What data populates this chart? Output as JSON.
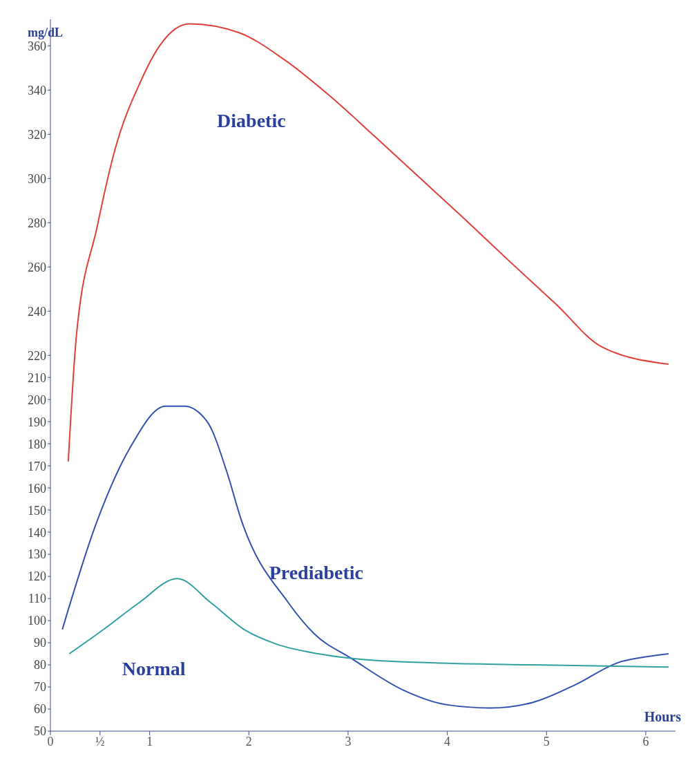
{
  "chart_data": {
    "type": "line",
    "xlabel": "Hours",
    "ylabel": "mg/dL",
    "xlim": [
      0,
      6.3
    ],
    "xticks": [
      0,
      {
        "value": 0.5,
        "label": "½"
      },
      1,
      2,
      3,
      4,
      5,
      6
    ],
    "ylim": [
      50,
      372
    ],
    "yticks": [
      50,
      60,
      70,
      80,
      90,
      100,
      110,
      120,
      130,
      140,
      150,
      160,
      170,
      180,
      190,
      200,
      210,
      220,
      240,
      260,
      280,
      300,
      320,
      340,
      360
    ],
    "grid": false,
    "marker": "none",
    "line_style": "solid",
    "series": [
      {
        "name": "Diabetic",
        "color": "#e0403a",
        "x": [
          0.18,
          0.26,
          0.47,
          0.65,
          0.91,
          1.1,
          1.4,
          1.9,
          2.35,
          2.8,
          3.27,
          3.73,
          4.19,
          4.64,
          5.1,
          5.55,
          6.23
        ],
        "values": [
          172,
          228,
          278,
          313,
          344,
          360,
          370,
          366,
          354,
          338,
          319,
          300,
          281,
          262,
          243,
          224,
          216
        ]
      },
      {
        "name": "Prediabetic",
        "color": "#3050b0",
        "x": [
          0.12,
          0.47,
          0.8,
          1.16,
          1.35,
          1.58,
          1.78,
          1.92,
          2.4,
          2.66,
          3.03,
          3.56,
          3.99,
          4.43,
          4.86,
          5.29,
          5.72,
          6.06,
          6.23
        ],
        "values": [
          96,
          145,
          178,
          197,
          197,
          190,
          167,
          146,
          108,
          94,
          83,
          68.5,
          62,
          60.5,
          63,
          71,
          81,
          84,
          85
        ]
      },
      {
        "name": "Normal",
        "color": "#30a0a0",
        "x": [
          0.19,
          0.55,
          0.89,
          1.28,
          1.62,
          1.97,
          2.27,
          2.7,
          3.13,
          4.0,
          4.86,
          6.23
        ],
        "values": [
          85,
          96.5,
          108,
          119,
          108,
          95.5,
          89.5,
          85,
          82.5,
          80.7,
          80,
          79
        ]
      }
    ]
  }
}
